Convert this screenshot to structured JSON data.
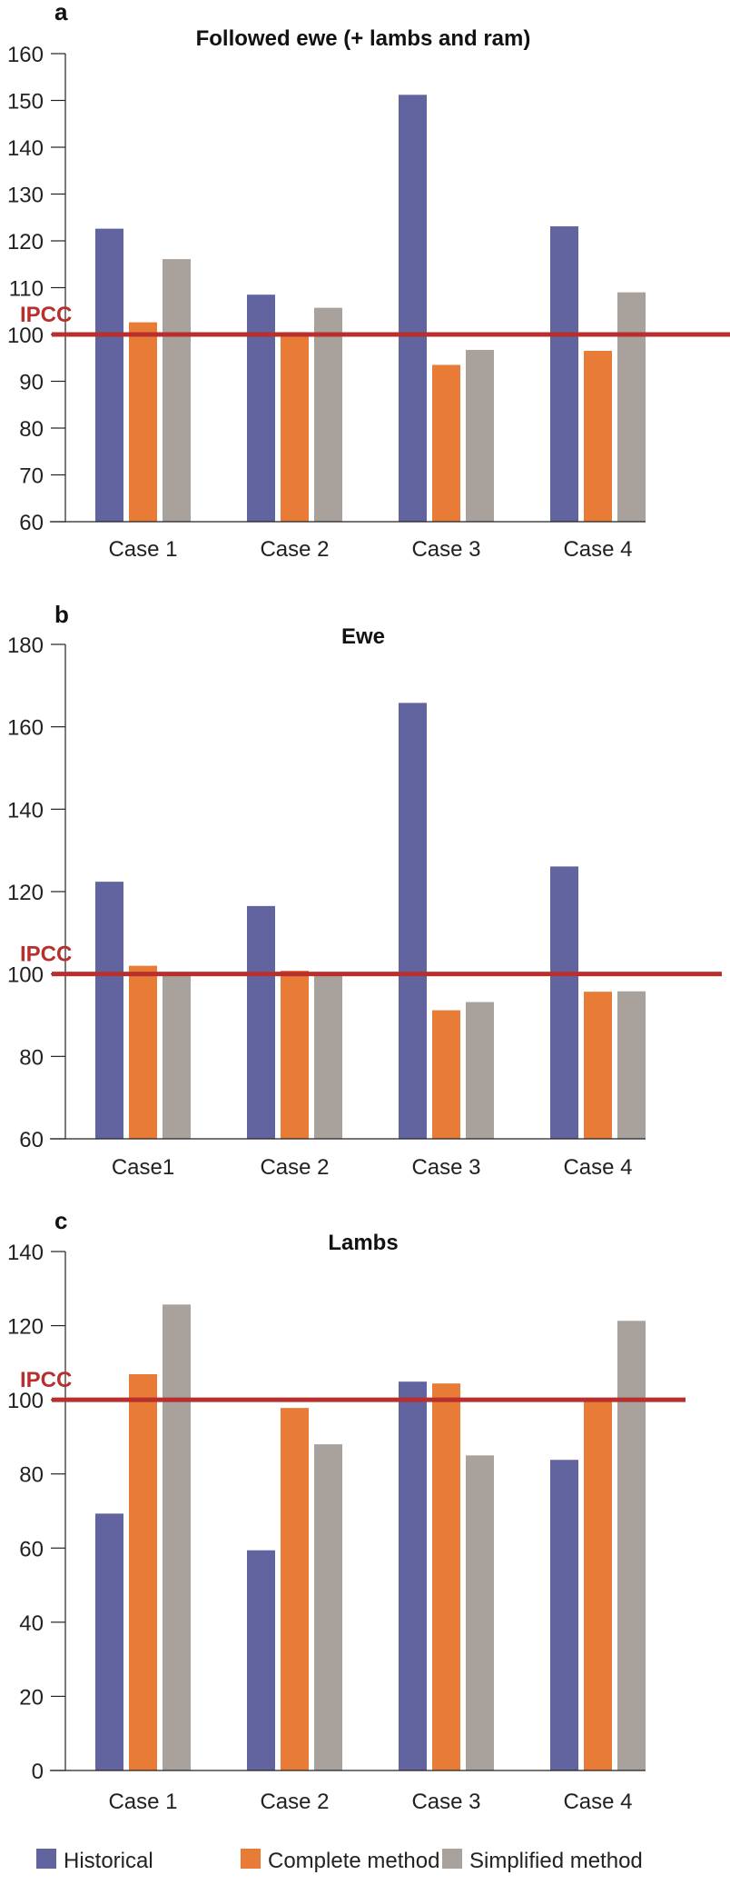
{
  "chart_data": [
    {
      "type": "bar",
      "panel_letter": "a",
      "title": "Followed ewe (+ lambs and ram)",
      "categories": [
        "Case 1",
        "Case 2",
        "Case 3",
        "Case 4"
      ],
      "ylim": [
        60,
        160
      ],
      "yticks": [
        60,
        70,
        80,
        90,
        100,
        110,
        120,
        130,
        140,
        150,
        160
      ],
      "reference_line": {
        "label": "IPCC",
        "value": 100
      },
      "series": [
        {
          "name": "Historical",
          "values": [
            122.6,
            108.5,
            151.2,
            123.1
          ]
        },
        {
          "name": "Complete method",
          "values": [
            102.6,
            100.5,
            93.5,
            96.5
          ]
        },
        {
          "name": "Simplified method",
          "values": [
            116.1,
            105.7,
            96.7,
            109.0
          ]
        }
      ]
    },
    {
      "type": "bar",
      "panel_letter": "b",
      "title": "Ewe",
      "categories": [
        "Case1",
        "Case 2",
        "Case 3",
        "Case 4"
      ],
      "ylim": [
        60,
        180
      ],
      "yticks": [
        60,
        80,
        100,
        120,
        140,
        160,
        180
      ],
      "reference_line": {
        "label": "IPCC",
        "value": 100
      },
      "series": [
        {
          "name": "Historical",
          "values": [
            122.4,
            116.5,
            165.8,
            126.1
          ]
        },
        {
          "name": "Complete method",
          "values": [
            102.0,
            100.8,
            91.2,
            95.7
          ]
        },
        {
          "name": "Simplified method",
          "values": [
            100.5,
            100.3,
            93.2,
            95.8
          ]
        }
      ]
    },
    {
      "type": "bar",
      "panel_letter": "c",
      "title": "Lambs",
      "categories": [
        "Case 1",
        "Case 2",
        "Case 3",
        "Case 4"
      ],
      "ylim": [
        0,
        140
      ],
      "yticks": [
        0,
        20,
        40,
        60,
        80,
        100,
        120,
        140
      ],
      "reference_line": {
        "label": "IPCC",
        "value": 100
      },
      "series": [
        {
          "name": "Historical",
          "values": [
            69.3,
            59.4,
            104.9,
            83.8
          ]
        },
        {
          "name": "Complete method",
          "values": [
            106.9,
            97.8,
            104.4,
            100.0
          ]
        },
        {
          "name": "Simplified method",
          "values": [
            125.7,
            88.0,
            85.0,
            121.3
          ]
        }
      ]
    }
  ],
  "legend": {
    "placement": "bottom",
    "items": [
      {
        "label": "Historical",
        "color": "#6264a0"
      },
      {
        "label": "Complete method",
        "color": "#e87b35"
      },
      {
        "label": "Simplified method",
        "color": "#a8a19c"
      }
    ]
  },
  "colors": {
    "ipcc_line": "#b8302e",
    "axis": "#222222"
  }
}
